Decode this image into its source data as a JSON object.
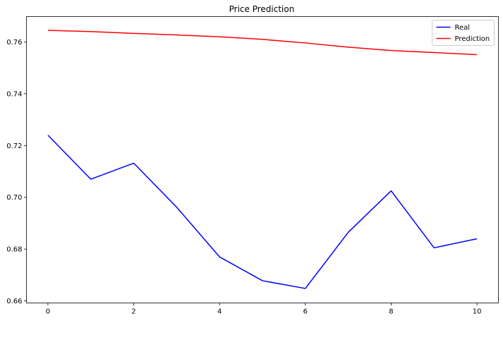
{
  "chart_data": {
    "type": "line",
    "title": "Price Prediction",
    "xlabel": "",
    "ylabel": "",
    "x": [
      0,
      1,
      2,
      3,
      4,
      5,
      6,
      7,
      8,
      9,
      10
    ],
    "xlim": [
      -0.5,
      10.5
    ],
    "ylim": [
      0.6592,
      0.7698
    ],
    "xticks": [
      0,
      2,
      4,
      6,
      8,
      10
    ],
    "xtick_labels": [
      "0",
      "2",
      "4",
      "6",
      "8",
      "10"
    ],
    "yticks": [
      0.66,
      0.68,
      0.7,
      0.72,
      0.74,
      0.76
    ],
    "ytick_labels": [
      "0.66",
      "0.68",
      "0.70",
      "0.72",
      "0.74",
      "0.76"
    ],
    "grid": false,
    "legend_position": "top-right",
    "series": [
      {
        "name": "Real",
        "color": "#0000ff",
        "values": [
          0.724,
          0.707,
          0.7132,
          0.6962,
          0.677,
          0.6678,
          0.6648,
          0.6865,
          0.7025,
          0.6805,
          0.684
        ]
      },
      {
        "name": "Prediction",
        "color": "#ff0000",
        "values": [
          0.7645,
          0.764,
          0.7633,
          0.7627,
          0.762,
          0.761,
          0.7596,
          0.758,
          0.7567,
          0.7559,
          0.7551
        ]
      }
    ]
  }
}
